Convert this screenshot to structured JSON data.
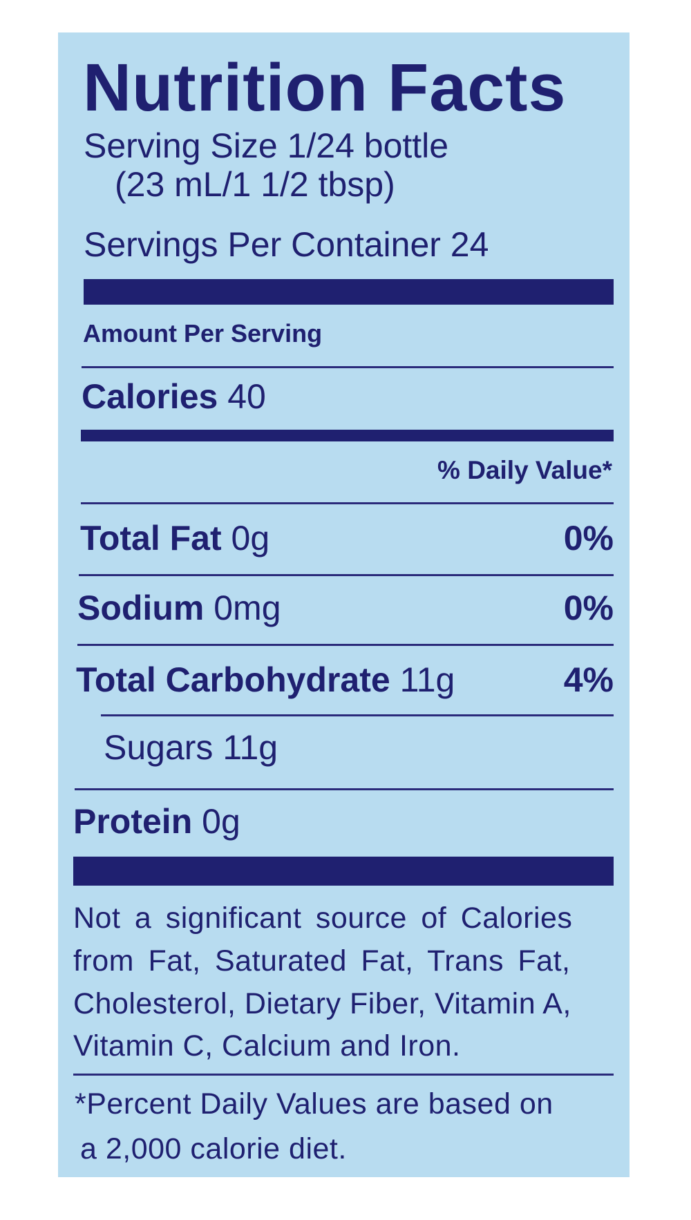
{
  "title": "Nutrition Facts",
  "serving_size": "Serving Size 1/24 bottle",
  "serving_size_alt": "(23 mL/1 1/2 tbsp)",
  "servings_per_container": "Servings Per Container 24",
  "amount_per_serving": "Amount Per Serving",
  "calories": {
    "label": "Calories",
    "value": "40"
  },
  "daily_value_header": "% Daily Value*",
  "nutrients": [
    {
      "label": "Total Fat",
      "amount": "0g",
      "dv": "0%"
    },
    {
      "label": "Sodium",
      "amount": "0mg",
      "dv": "0%"
    },
    {
      "label": "Total Carbohydrate",
      "amount": "11g",
      "dv": "4%"
    },
    {
      "label": "Sugars",
      "amount": "11g",
      "dv": ""
    },
    {
      "label": "Protein",
      "amount": "0g",
      "dv": ""
    }
  ],
  "footnote_lines": [
    "Not a significant source of Calories",
    "from Fat, Saturated Fat, Trans Fat,",
    "Cholesterol, Dietary Fiber, Vitamin A,",
    "Vitamin C, Calcium and Iron."
  ],
  "percent_note_lines": [
    "*Percent Daily Values are based on",
    "a 2,000 calorie diet."
  ],
  "colors": {
    "background": "#b8dcf0",
    "ink": "#1f2070"
  }
}
